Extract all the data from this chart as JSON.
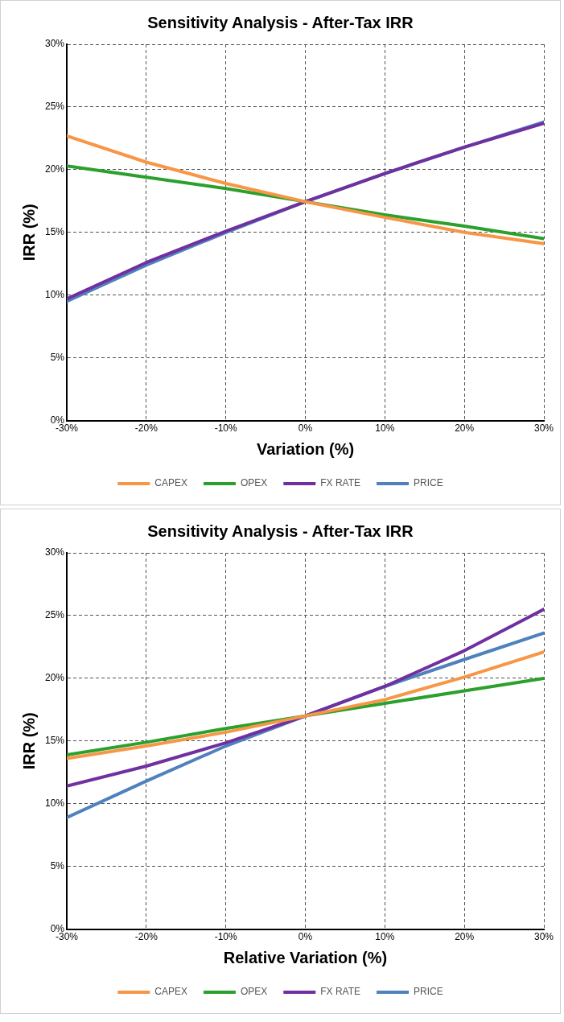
{
  "chart_data": [
    {
      "type": "line",
      "title": "Sensitivity Analysis - After-Tax IRR",
      "xlabel": "Variation (%)",
      "ylabel": "IRR (%)",
      "x": [
        -30,
        -20,
        -10,
        0,
        10,
        20,
        30
      ],
      "xlim": [
        -30,
        30
      ],
      "xticks": [
        {
          "value": -30,
          "label": "-30%"
        },
        {
          "value": -20,
          "label": "-20%"
        },
        {
          "value": -10,
          "label": "-10%"
        },
        {
          "value": 0,
          "label": "0%"
        },
        {
          "value": 10,
          "label": "10%"
        },
        {
          "value": 20,
          "label": "20%"
        },
        {
          "value": 30,
          "label": "30%"
        }
      ],
      "ylim": [
        0,
        30
      ],
      "yticks": [
        {
          "value": 0,
          "label": "0%"
        },
        {
          "value": 5,
          "label": "5%"
        },
        {
          "value": 10,
          "label": "10%"
        },
        {
          "value": 15,
          "label": "15%"
        },
        {
          "value": 20,
          "label": "20%"
        },
        {
          "value": 25,
          "label": "25%"
        },
        {
          "value": 30,
          "label": "30%"
        }
      ],
      "grid": true,
      "legend": "bottom",
      "marker": "none",
      "line_style": "solid",
      "series": [
        {
          "name": "CAPEX",
          "color": "#f79646",
          "values": [
            22.7,
            20.6,
            18.9,
            17.45,
            16.2,
            15.0,
            14.1
          ]
        },
        {
          "name": "OPEX",
          "color": "#2ca02c",
          "values": [
            20.3,
            19.4,
            18.5,
            17.45,
            16.4,
            15.5,
            14.5
          ]
        },
        {
          "name": "FX RATE",
          "color": "#7030a0",
          "values": [
            9.7,
            12.6,
            15.1,
            17.45,
            19.7,
            21.8,
            23.7
          ]
        },
        {
          "name": "PRICE",
          "color": "#4f81bd",
          "values": [
            9.5,
            12.4,
            15.0,
            17.45,
            19.7,
            21.8,
            23.8
          ]
        }
      ]
    },
    {
      "type": "line",
      "title": "Sensitivity Analysis - After-Tax IRR",
      "xlabel": "Relative Variation (%)",
      "ylabel": "IRR (%)",
      "x": [
        -30,
        -20,
        -10,
        0,
        10,
        20,
        30
      ],
      "xlim": [
        -30,
        30
      ],
      "xticks": [
        {
          "value": -30,
          "label": "-30%"
        },
        {
          "value": -20,
          "label": "-20%"
        },
        {
          "value": -10,
          "label": "-10%"
        },
        {
          "value": 0,
          "label": "0%"
        },
        {
          "value": 10,
          "label": "10%"
        },
        {
          "value": 20,
          "label": "20%"
        },
        {
          "value": 30,
          "label": "30%"
        }
      ],
      "ylim": [
        0,
        30
      ],
      "yticks": [
        {
          "value": 0,
          "label": "0%"
        },
        {
          "value": 5,
          "label": "5%"
        },
        {
          "value": 10,
          "label": "10%"
        },
        {
          "value": 15,
          "label": "15%"
        },
        {
          "value": 20,
          "label": "20%"
        },
        {
          "value": 25,
          "label": "25%"
        },
        {
          "value": 30,
          "label": "30%"
        }
      ],
      "grid": true,
      "legend": "bottom",
      "marker": "none",
      "line_style": "solid",
      "series": [
        {
          "name": "CAPEX",
          "color": "#f79646",
          "values": [
            13.6,
            14.6,
            15.7,
            17.0,
            18.3,
            20.1,
            22.1
          ]
        },
        {
          "name": "OPEX",
          "color": "#2ca02c",
          "values": [
            13.9,
            14.9,
            16.0,
            17.0,
            18.0,
            19.0,
            20.0
          ]
        },
        {
          "name": "FX RATE",
          "color": "#7030a0",
          "values": [
            11.4,
            13.0,
            14.85,
            17.0,
            19.35,
            22.2,
            25.5
          ]
        },
        {
          "name": "PRICE",
          "color": "#4f81bd",
          "values": [
            8.9,
            11.8,
            14.6,
            17.0,
            19.35,
            21.5,
            23.6
          ]
        }
      ]
    }
  ]
}
